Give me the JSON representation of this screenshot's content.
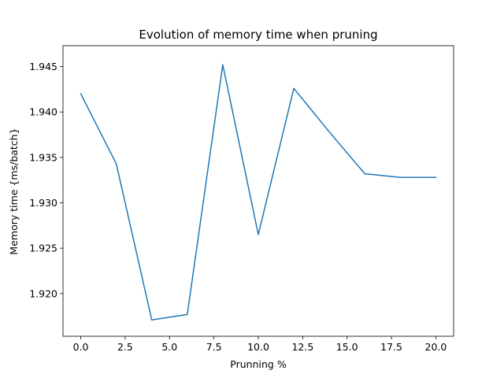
{
  "chart_data": {
    "type": "line",
    "title": "Evolution of memory time when pruning",
    "xlabel": "Prunning %",
    "ylabel": "Memory time {ms/batch}",
    "xlim": [
      -1.0,
      21.0
    ],
    "ylim": [
      1.9153,
      1.9473
    ],
    "xticks": [
      0.0,
      2.5,
      5.0,
      7.5,
      10.0,
      12.5,
      15.0,
      17.5,
      20.0
    ],
    "xtick_labels": [
      "0.0",
      "2.5",
      "5.0",
      "7.5",
      "10.0",
      "12.5",
      "15.0",
      "17.5",
      "20.0"
    ],
    "yticks": [
      1.92,
      1.925,
      1.93,
      1.935,
      1.94,
      1.945
    ],
    "ytick_labels": [
      "1.920",
      "1.925",
      "1.930",
      "1.935",
      "1.940",
      "1.945"
    ],
    "grid": false,
    "series": [
      {
        "color": "#1f77b4",
        "x": [
          0,
          2,
          4,
          6,
          8,
          10,
          12,
          13,
          14,
          16,
          18,
          20
        ],
        "y": [
          1.942,
          1.9343,
          1.9171,
          1.9177,
          1.9452,
          1.9265,
          1.9426,
          1.9402,
          1.9378,
          1.9332,
          1.9328,
          1.9328
        ]
      }
    ]
  }
}
